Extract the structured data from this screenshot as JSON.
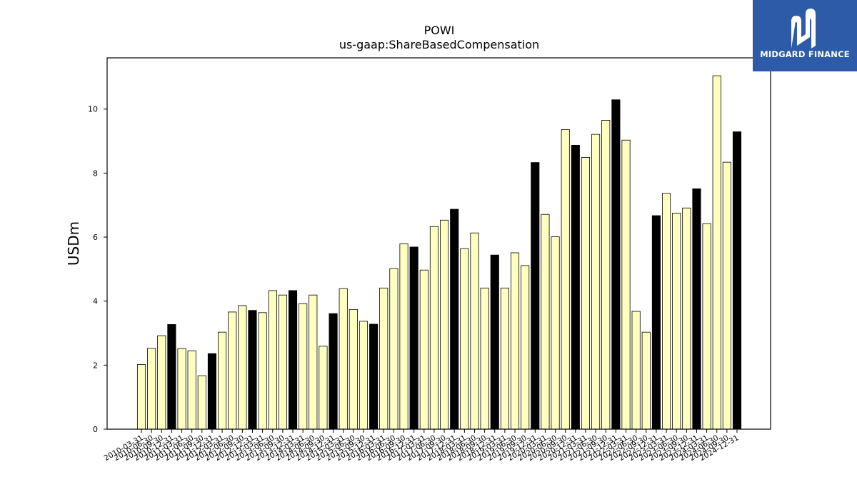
{
  "brand": {
    "name": "MIDGARD FINANCE",
    "logo_icon": "midgard-mark-icon",
    "bg_color": "#2d5ba8"
  },
  "chart_data": {
    "type": "bar",
    "title": "POWI",
    "subtitle": "us-gaap:ShareBasedCompensation",
    "ylabel": "USDm",
    "xlabel": "",
    "ylim": [
      0,
      11.6
    ],
    "yticks": [
      0,
      2,
      4,
      6,
      8,
      10
    ],
    "grid": false,
    "colors": {
      "quarter": "#ffffc0",
      "fiscal_year_end": "#000000",
      "edge": "#000000"
    },
    "categories": [
      "2010-03-31",
      "2010-06-30",
      "2010-09-30",
      "2010-12-31",
      "2011-03-31",
      "2011-06-30",
      "2011-09-30",
      "2011-12-31",
      "2012-03-31",
      "2012-06-30",
      "2012-09-30",
      "2012-12-31",
      "2013-03-31",
      "2013-06-30",
      "2013-09-30",
      "2013-12-31",
      "2014-03-31",
      "2014-06-30",
      "2014-09-30",
      "2014-12-31",
      "2015-03-31",
      "2015-06-30",
      "2015-09-30",
      "2015-12-31",
      "2016-03-31",
      "2016-06-30",
      "2016-09-30",
      "2016-12-31",
      "2017-03-31",
      "2017-06-30",
      "2017-09-30",
      "2017-12-31",
      "2018-03-31",
      "2018-06-30",
      "2018-09-30",
      "2018-12-31",
      "2019-03-31",
      "2019-06-30",
      "2019-09-30",
      "2019-12-31",
      "2020-03-31",
      "2020-06-30",
      "2020-09-30",
      "2020-12-31",
      "2021-03-31",
      "2021-06-30",
      "2021-09-30",
      "2021-12-31",
      "2022-03-31",
      "2022-06-30",
      "2022-09-30",
      "2022-12-31",
      "2023-03-31",
      "2023-06-30",
      "2023-09-30",
      "2023-12-31",
      "2024-03-31",
      "2024-06-30",
      "2024-09-30",
      "2024-12-31"
    ],
    "values": [
      2.02,
      2.52,
      2.92,
      3.27,
      2.52,
      2.45,
      1.67,
      2.36,
      3.03,
      3.66,
      3.86,
      3.71,
      3.64,
      4.33,
      4.19,
      4.33,
      3.92,
      4.19,
      2.59,
      3.61,
      4.39,
      3.74,
      3.37,
      3.28,
      4.41,
      5.02,
      5.79,
      5.69,
      4.97,
      6.33,
      6.53,
      6.87,
      5.64,
      6.13,
      4.41,
      5.44,
      4.41,
      5.51,
      5.11,
      8.33,
      6.71,
      6.01,
      9.36,
      8.87,
      8.49,
      9.21,
      9.65,
      10.29,
      9.03,
      3.68,
      3.03,
      6.67,
      7.37,
      6.75,
      6.91,
      7.51,
      6.42,
      11.04,
      8.34,
      9.29
    ],
    "fiscal_year_end": [
      false,
      false,
      false,
      true,
      false,
      false,
      false,
      true,
      false,
      false,
      false,
      true,
      false,
      false,
      false,
      true,
      false,
      false,
      false,
      true,
      false,
      false,
      false,
      true,
      false,
      false,
      false,
      true,
      false,
      false,
      false,
      true,
      false,
      false,
      false,
      true,
      false,
      false,
      false,
      true,
      false,
      false,
      false,
      true,
      false,
      false,
      false,
      true,
      false,
      false,
      false,
      true,
      false,
      false,
      false,
      true,
      false,
      false,
      false,
      true
    ]
  }
}
